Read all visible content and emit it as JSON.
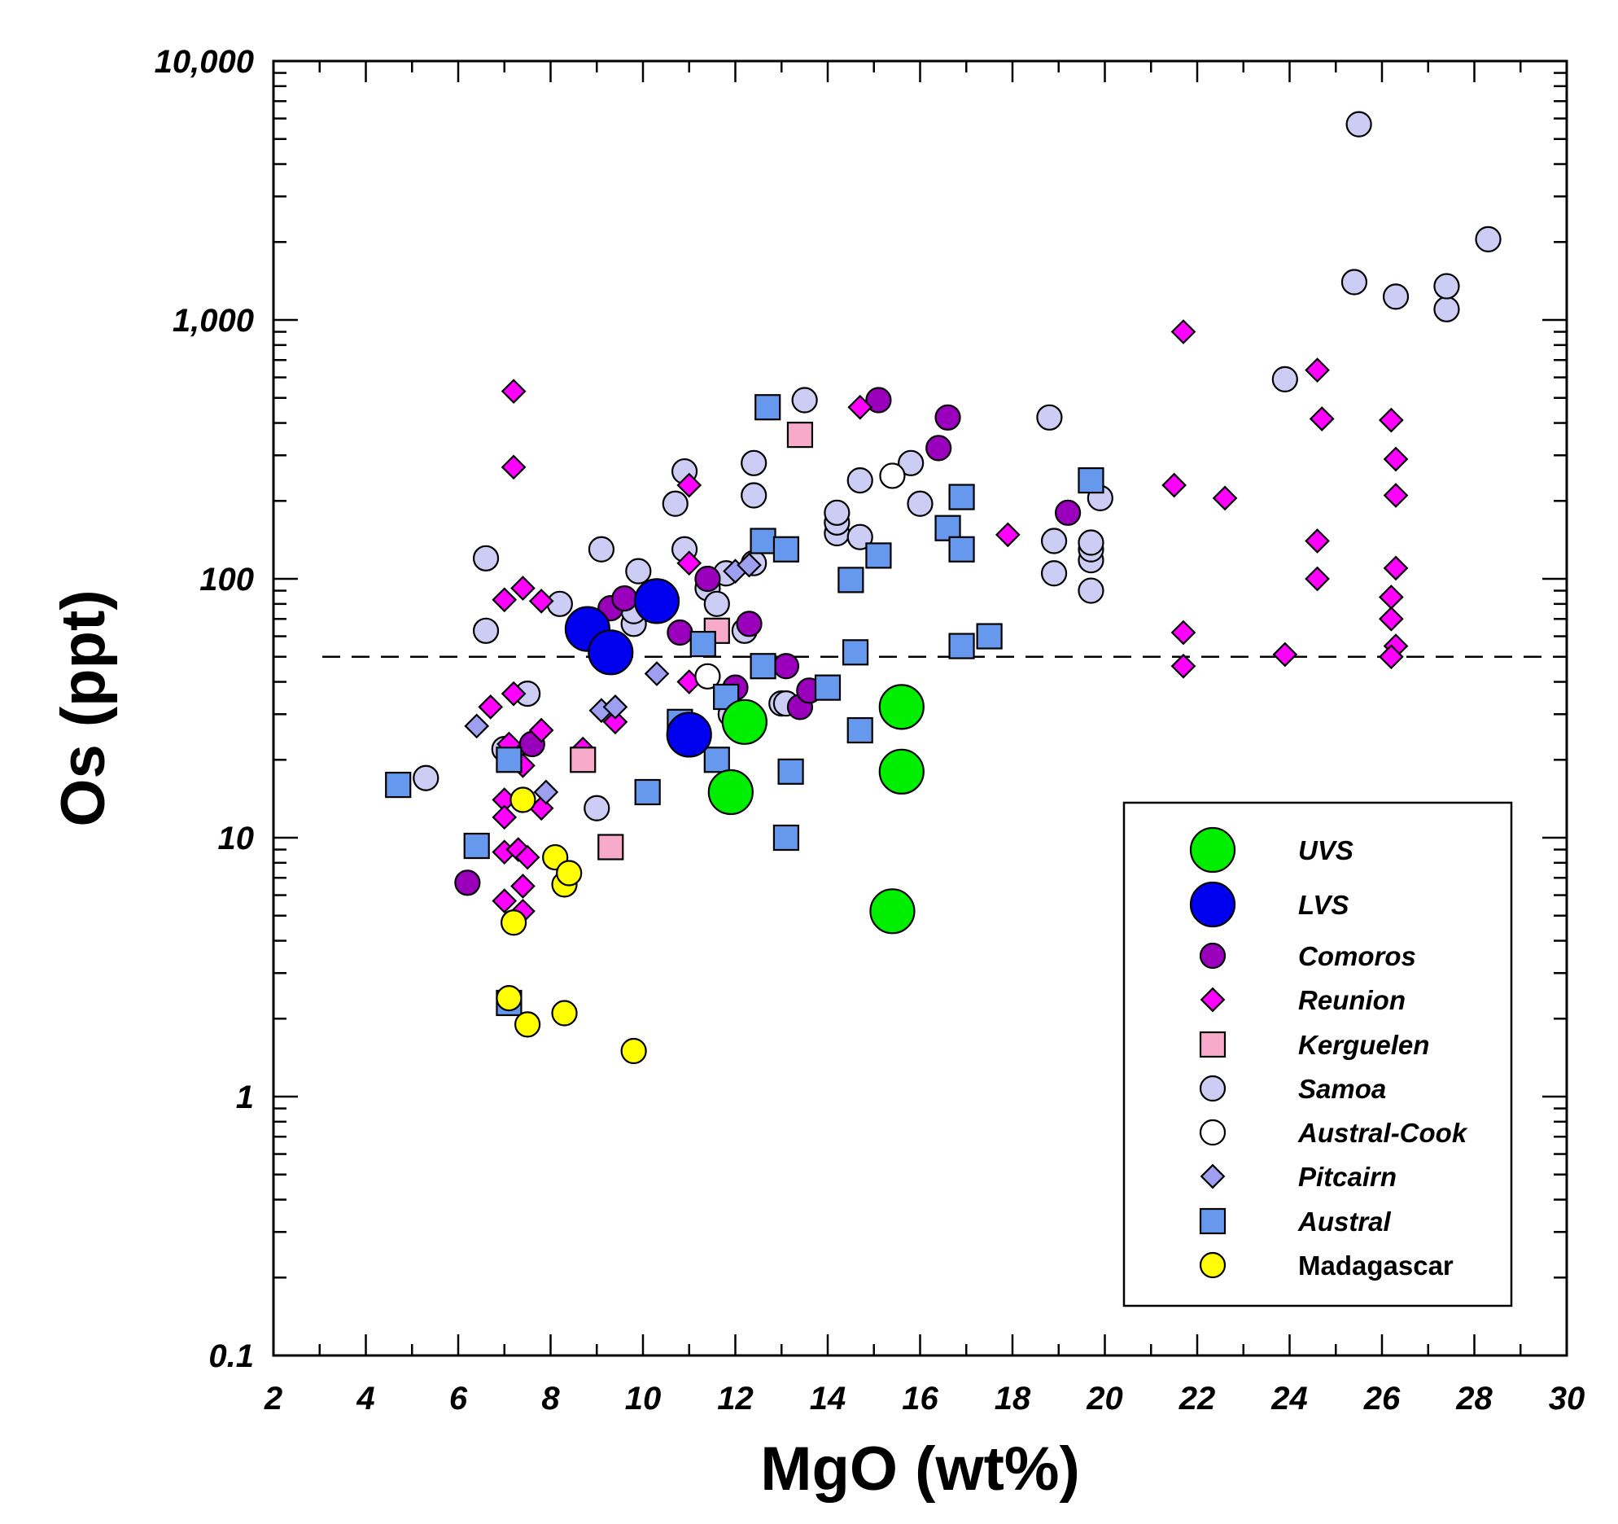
{
  "chart_data": {
    "type": "scatter",
    "title": "",
    "xlabel": "MgO (wt%)",
    "ylabel": "Os (ppt)",
    "xlim": [
      2,
      30
    ],
    "ylim": [
      0.1,
      10000
    ],
    "yscale": "log",
    "x_ticks": [
      2,
      4,
      6,
      8,
      10,
      12,
      14,
      16,
      18,
      20,
      22,
      24,
      26,
      28,
      30
    ],
    "x_tick_labels": [
      "2",
      "4",
      "6",
      "8",
      "10",
      "12",
      "14",
      "16",
      "18",
      "20",
      "22",
      "24",
      "26",
      "28",
      "30"
    ],
    "y_ticks": [
      0.1,
      1,
      10,
      100,
      1000,
      10000
    ],
    "y_tick_labels": [
      "0.1",
      "1",
      "10",
      "100",
      "1,000",
      "10,000"
    ],
    "reference_line": {
      "y": 50,
      "style": "dashed"
    },
    "grid": false,
    "legend_position": "bottom-right",
    "series": [
      {
        "name": "Samoa",
        "marker": "circle",
        "color": "#ccccf5",
        "size": "medium",
        "italic": true,
        "points": [
          [
            5.3,
            17
          ],
          [
            6.6,
            120
          ],
          [
            6.6,
            63
          ],
          [
            7.0,
            22
          ],
          [
            7.5,
            36
          ],
          [
            8.2,
            80
          ],
          [
            9.0,
            13
          ],
          [
            9.1,
            130
          ],
          [
            9.8,
            67
          ],
          [
            9.8,
            75
          ],
          [
            9.9,
            107
          ],
          [
            10.7,
            195
          ],
          [
            10.9,
            130
          ],
          [
            10.9,
            260
          ],
          [
            11.4,
            92
          ],
          [
            11.6,
            80
          ],
          [
            11.8,
            105
          ],
          [
            11.9,
            30
          ],
          [
            12.2,
            63
          ],
          [
            12.4,
            280
          ],
          [
            12.4,
            210
          ],
          [
            12.4,
            115
          ],
          [
            13.0,
            33
          ],
          [
            13.1,
            33
          ],
          [
            13.5,
            490
          ],
          [
            14.2,
            150
          ],
          [
            14.2,
            165
          ],
          [
            14.2,
            180
          ],
          [
            14.7,
            145
          ],
          [
            14.7,
            240
          ],
          [
            15.8,
            280
          ],
          [
            16.0,
            195
          ],
          [
            18.8,
            420
          ],
          [
            18.9,
            105
          ],
          [
            18.9,
            140
          ],
          [
            19.7,
            90
          ],
          [
            19.7,
            118
          ],
          [
            19.7,
            130
          ],
          [
            19.7,
            138
          ],
          [
            19.9,
            205
          ],
          [
            23.9,
            590
          ],
          [
            25.4,
            1400
          ],
          [
            25.5,
            5700
          ],
          [
            26.3,
            1230
          ],
          [
            27.4,
            1100
          ],
          [
            27.4,
            1350
          ],
          [
            28.3,
            2050
          ]
        ]
      },
      {
        "name": "Comoros",
        "marker": "circle",
        "color": "#9a00bb",
        "size": "medium",
        "italic": true,
        "points": [
          [
            6.2,
            6.7
          ],
          [
            7.6,
            23
          ],
          [
            9.3,
            77
          ],
          [
            9.6,
            84
          ],
          [
            10.8,
            62
          ],
          [
            11.4,
            100
          ],
          [
            12.0,
            38
          ],
          [
            12.3,
            67
          ],
          [
            13.1,
            46
          ],
          [
            13.4,
            32
          ],
          [
            13.6,
            37
          ],
          [
            15.1,
            490
          ],
          [
            16.4,
            320
          ],
          [
            16.6,
            420
          ],
          [
            19.2,
            180
          ]
        ]
      },
      {
        "name": "Reunion",
        "marker": "diamond",
        "color": "#ff00ff",
        "size": "small",
        "italic": true,
        "points": [
          [
            6.7,
            32
          ],
          [
            7.0,
            83
          ],
          [
            7.0,
            14
          ],
          [
            7.0,
            12
          ],
          [
            7.0,
            8.8
          ],
          [
            7.0,
            5.7
          ],
          [
            7.1,
            23
          ],
          [
            7.2,
            530
          ],
          [
            7.2,
            36
          ],
          [
            7.2,
            270
          ],
          [
            7.3,
            9
          ],
          [
            7.4,
            6.5
          ],
          [
            7.4,
            5.2
          ],
          [
            7.4,
            92
          ],
          [
            7.4,
            19
          ],
          [
            7.5,
            8.4
          ],
          [
            7.8,
            82
          ],
          [
            7.8,
            26
          ],
          [
            7.8,
            13
          ],
          [
            8.7,
            22
          ],
          [
            9.4,
            28
          ],
          [
            11.0,
            230
          ],
          [
            11.0,
            115
          ],
          [
            11.0,
            40
          ],
          [
            14.7,
            460
          ],
          [
            17.9,
            148
          ],
          [
            21.5,
            230
          ],
          [
            21.7,
            900
          ],
          [
            21.7,
            62
          ],
          [
            21.7,
            46
          ],
          [
            22.6,
            205
          ],
          [
            23.9,
            51
          ],
          [
            24.6,
            640
          ],
          [
            24.6,
            140
          ],
          [
            24.6,
            100
          ],
          [
            24.7,
            415
          ],
          [
            26.2,
            410
          ],
          [
            26.3,
            290
          ],
          [
            26.3,
            210
          ],
          [
            26.3,
            110
          ],
          [
            26.2,
            85
          ],
          [
            26.2,
            70
          ],
          [
            26.3,
            55
          ],
          [
            26.2,
            50
          ]
        ]
      },
      {
        "name": "Kerguelen",
        "marker": "square",
        "color": "#f7aaca",
        "size": "medium",
        "italic": true,
        "points": [
          [
            8.7,
            20
          ],
          [
            9.3,
            9.2
          ],
          [
            11.6,
            63
          ],
          [
            13.4,
            360
          ]
        ]
      },
      {
        "name": "Austral-Cook",
        "marker": "circle",
        "color": "#ffffff",
        "size": "medium",
        "italic": true,
        "points": [
          [
            11.4,
            42
          ],
          [
            15.4,
            250
          ]
        ]
      },
      {
        "name": "Pitcairn",
        "marker": "diamond",
        "color": "#9f9ff2",
        "size": "small",
        "italic": true,
        "points": [
          [
            6.4,
            27
          ],
          [
            7.9,
            15
          ],
          [
            9.1,
            31
          ],
          [
            9.4,
            32
          ],
          [
            10.3,
            43
          ],
          [
            12.0,
            107
          ],
          [
            12.3,
            113
          ]
        ]
      },
      {
        "name": "Austral",
        "marker": "square",
        "color": "#6699ee",
        "size": "medium",
        "italic": true,
        "points": [
          [
            4.7,
            16
          ],
          [
            6.4,
            9.3
          ],
          [
            7.1,
            20
          ],
          [
            7.1,
            2.3
          ],
          [
            10.1,
            15
          ],
          [
            10.8,
            28
          ],
          [
            11.3,
            56
          ],
          [
            11.6,
            20
          ],
          [
            11.8,
            35
          ],
          [
            12.6,
            140
          ],
          [
            12.6,
            46
          ],
          [
            12.7,
            460
          ],
          [
            13.1,
            130
          ],
          [
            13.1,
            10
          ],
          [
            13.2,
            18
          ],
          [
            14.0,
            38
          ],
          [
            14.5,
            99
          ],
          [
            14.6,
            52
          ],
          [
            14.7,
            26
          ],
          [
            15.1,
            123
          ],
          [
            16.6,
            157
          ],
          [
            16.9,
            207
          ],
          [
            16.9,
            130
          ],
          [
            16.9,
            55
          ],
          [
            17.5,
            60
          ],
          [
            19.7,
            240
          ]
        ]
      },
      {
        "name": "Madagascar",
        "marker": "circle",
        "color": "#ffff00",
        "size": "medium",
        "italic": false,
        "points": [
          [
            7.1,
            2.4
          ],
          [
            7.2,
            4.7
          ],
          [
            7.4,
            14
          ],
          [
            7.5,
            1.9
          ],
          [
            8.1,
            8.4
          ],
          [
            8.3,
            6.6
          ],
          [
            8.3,
            2.1
          ],
          [
            8.4,
            7.3
          ],
          [
            9.8,
            1.5
          ]
        ]
      },
      {
        "name": "UVS",
        "marker": "circle",
        "color": "#00ee00",
        "size": "large",
        "italic": true,
        "points": [
          [
            11.9,
            15
          ],
          [
            12.2,
            28
          ],
          [
            15.4,
            5.2
          ],
          [
            15.6,
            32
          ],
          [
            15.6,
            18
          ]
        ]
      },
      {
        "name": "LVS",
        "marker": "circle",
        "color": "#0000ee",
        "size": "large",
        "italic": true,
        "points": [
          [
            8.8,
            64
          ],
          [
            9.3,
            52
          ],
          [
            10.3,
            82
          ],
          [
            11.0,
            25
          ]
        ]
      }
    ],
    "legend_order": [
      "UVS",
      "LVS",
      "Comoros",
      "Reunion",
      "Kerguelen",
      "Samoa",
      "Austral-Cook",
      "Pitcairn",
      "Austral",
      "Madagascar"
    ]
  }
}
